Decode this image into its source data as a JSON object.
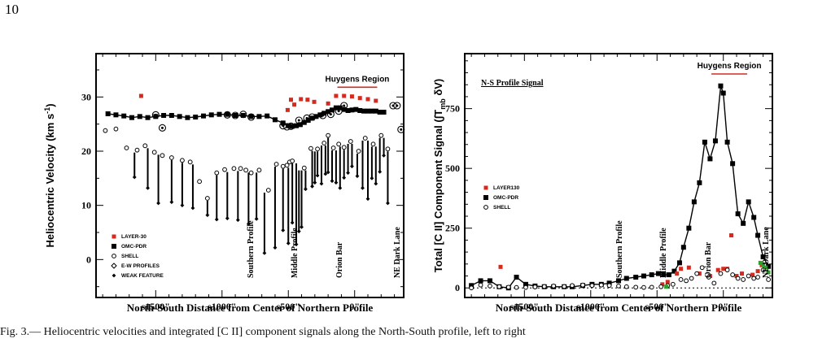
{
  "page_number": "10",
  "caption": "Fig. 3.— Heliocentric velocities and integrated [C II] component signals along the North-South profile, left to right",
  "chart_data": [
    {
      "type": "scatter",
      "title": "",
      "xlabel": "North-South Distance from Center of Northern Profile",
      "ylabel": "Heliocentric Velocity (km s",
      "ylabel_sup": "-1",
      "ylabel_end": ")",
      "xlim": [
        -1950,
        370
      ],
      "ylim": [
        -7,
        38
      ],
      "xticks": [
        {
          "value": -1500,
          "label": "s1500\""
        },
        {
          "value": -1000,
          "label": "s1000\""
        },
        {
          "value": -500,
          "label": "s500\""
        },
        {
          "value": 0,
          "label": "0\""
        }
      ],
      "yticks": [
        0,
        10,
        20,
        30
      ],
      "grid": false,
      "legend_position": "bottom-left",
      "legend": [
        "LAYER-30",
        "OMC-PDR",
        "SHELL",
        "E-W PROFILES",
        "WEAK FEATURE"
      ],
      "annotations": [
        {
          "text": "Southern Profile",
          "x": -790
        },
        {
          "text": "Middle Profile",
          "x": -460
        },
        {
          "text": "Orion Bar",
          "x": -120
        },
        {
          "text": "NE Dark Lane",
          "x": 315
        }
      ],
      "region": {
        "text": "Huygens Region",
        "x_range": [
          -130,
          170
        ],
        "y": 31.8
      },
      "series": [
        {
          "name": "OMC-PDR",
          "marker": "filled-square",
          "line": true,
          "x": [
            -1860,
            -1800,
            -1740,
            -1680,
            -1620,
            -1560,
            -1500,
            -1440,
            -1380,
            -1320,
            -1260,
            -1200,
            -1140,
            -1080,
            -1020,
            -960,
            -900,
            -840,
            -780,
            -720,
            -660,
            -600,
            -540,
            -500,
            -470,
            -440,
            -410,
            -380,
            -350,
            -320,
            -290,
            -260,
            -230,
            -200,
            -170,
            -140,
            -110,
            -80,
            -50,
            -20,
            10,
            40,
            70,
            100,
            130,
            160,
            190,
            220
          ],
          "y": [
            26.9,
            26.7,
            26.5,
            26.2,
            26.4,
            26.2,
            26.4,
            26.6,
            26.6,
            26.4,
            26.2,
            26.3,
            26.5,
            26.7,
            26.8,
            26.8,
            26.6,
            26.6,
            26.4,
            26.4,
            26.5,
            25.8,
            25.2,
            24.7,
            24.6,
            24.7,
            24.9,
            25.3,
            25.7,
            26.1,
            26.4,
            26.7,
            27.0,
            27.3,
            27.6,
            28.0,
            28.0,
            27.7,
            27.5,
            27.6,
            27.7,
            27.5,
            27.4,
            27.4,
            27.4,
            27.4,
            27.2,
            27.2
          ]
        },
        {
          "name": "LAYER-30",
          "marker": "red-square",
          "x": [
            -1610,
            -505,
            -480,
            -455,
            -405,
            -355,
            -305,
            -200,
            -140,
            -80,
            -20,
            40,
            100,
            160
          ],
          "y": [
            30.2,
            27.6,
            29.5,
            28.6,
            29.6,
            29.5,
            29.1,
            28.8,
            30.2,
            30.2,
            30.1,
            29.8,
            29.6,
            29.3
          ]
        },
        {
          "name": "SHELL",
          "marker": "open-circle",
          "x": [
            -1880,
            -1800,
            -1720,
            -1640,
            -1580,
            -1510,
            -1450,
            -1380,
            -1300,
            -1240,
            -1170,
            -1110,
            -1040,
            -980,
            -910,
            -860,
            -820,
            -780,
            -720,
            -650,
            -590,
            -540,
            -510,
            -490,
            -470,
            -380,
            -330,
            -280,
            -230,
            -200,
            -160,
            -120,
            -80,
            -30,
            30,
            80,
            140,
            200,
            250
          ],
          "y": [
            23.8,
            24.1,
            20.6,
            20.2,
            21.0,
            19.8,
            19.2,
            18.8,
            18.3,
            18.0,
            14.4,
            11.3,
            16.0,
            16.6,
            16.8,
            16.8,
            16.5,
            16.0,
            16.5,
            12.8,
            17.6,
            17.2,
            17.4,
            18.0,
            18.2,
            16.9,
            20.5,
            20.4,
            21.5,
            22.9,
            20.6,
            21.3,
            20.7,
            21.8,
            20.0,
            22.4,
            21.3,
            22.9,
            20.4
          ]
        },
        {
          "name": "E-W PROFILES",
          "marker": "circled-point",
          "x": [
            -1500,
            -1450,
            -960,
            -900,
            -840,
            -780,
            -540,
            -510,
            -480,
            -420,
            -360,
            -320,
            -240,
            -180,
            -120,
            -80,
            290,
            320,
            350
          ],
          "y": [
            26.7,
            24.3,
            26.7,
            26.6,
            26.8,
            26.3,
            24.7,
            24.5,
            24.6,
            25.7,
            26.1,
            26.3,
            26.6,
            26.8,
            27.4,
            28.4,
            28.4,
            28.4,
            24.0
          ]
        },
        {
          "name": "WEAK FEATURE",
          "marker": "small-diamond",
          "x": [
            -1660,
            -1560,
            -1480,
            -1380,
            -1300,
            -1220,
            -1110,
            -1040,
            -960,
            -880,
            -800,
            -740,
            -680,
            -600,
            -540,
            -500,
            -470,
            -440,
            -420,
            -400,
            -370,
            -320,
            -300,
            -280,
            -250,
            -220,
            -200,
            -170,
            -140,
            -110,
            -80,
            -50,
            -20,
            20,
            60,
            100,
            130,
            160,
            190,
            220,
            250
          ],
          "y": [
            15.2,
            13.2,
            10.4,
            10.6,
            10.0,
            9.5,
            8.2,
            7.4,
            7.6,
            7.3,
            6.6,
            7.5,
            1.2,
            2.2,
            5.4,
            3.0,
            6.8,
            2.8,
            5.2,
            6.0,
            13.0,
            13.5,
            14.2,
            15.5,
            14.0,
            15.8,
            16.1,
            14.5,
            14.2,
            13.2,
            15.1,
            16.0,
            17.2,
            15.4,
            13.2,
            11.2,
            15.0,
            14.0,
            16.2,
            19.2,
            10.4
          ]
        }
      ]
    },
    {
      "type": "line",
      "title": "N-S Profile Signal",
      "xlabel": "North-South Distance from Center of  Northern Profile",
      "ylabel": "Total [C II] Component Signal (∫T",
      "ylabel_sub": "mb",
      "ylabel_end": " δV)",
      "xlim": [
        -1950,
        370
      ],
      "ylim": [
        -40,
        980
      ],
      "xticks": [
        {
          "value": -1500,
          "label": "s1500\""
        },
        {
          "value": -1000,
          "label": "s1000\""
        },
        {
          "value": -500,
          "label": "s500\""
        },
        {
          "value": 0,
          "label": "0\""
        }
      ],
      "yticks": [
        0,
        250,
        500,
        750
      ],
      "grid": false,
      "legend_position": "middle-left",
      "legend": [
        "LAYER130",
        "OMC-PDR",
        "SHELL"
      ],
      "annotations": [
        {
          "text": "Southern Profile",
          "x": -790
        },
        {
          "text": "Middle Profile",
          "x": -460
        },
        {
          "text": "Orion Bar",
          "x": -120
        },
        {
          "text": "NE Dark Lane",
          "x": 315
        }
      ],
      "region": {
        "text": "Huygens Region",
        "x_range": [
          -90,
          180
        ],
        "y": 895
      },
      "series": [
        {
          "name": "OMC-PDR",
          "marker": "filled-square",
          "line": true,
          "x": [
            -1900,
            -1830,
            -1760,
            -1690,
            -1620,
            -1560,
            -1490,
            -1420,
            -1350,
            -1280,
            -1200,
            -1140,
            -1060,
            -990,
            -920,
            -860,
            -790,
            -730,
            -660,
            -600,
            -540,
            -490,
            -450,
            -410,
            -370,
            -330,
            -300,
            -260,
            -220,
            -180,
            -140,
            -100,
            -60,
            -20,
            0,
            30,
            70,
            110,
            150,
            190,
            230,
            260,
            300,
            340
          ],
          "y": [
            10,
            30,
            30,
            5,
            0,
            45,
            15,
            8,
            5,
            5,
            5,
            5,
            10,
            15,
            15,
            20,
            30,
            40,
            45,
            50,
            55,
            60,
            55,
            55,
            70,
            105,
            170,
            250,
            360,
            440,
            610,
            540,
            615,
            845,
            815,
            610,
            520,
            310,
            270,
            360,
            295,
            220,
            130,
            90
          ]
        },
        {
          "name": "LAYER130",
          "marker": "red-square",
          "x": [
            -1680,
            -460,
            -420,
            -350,
            -320,
            -260,
            -180,
            -100,
            -40,
            0,
            30,
            60,
            100,
            140,
            220,
            260,
            290
          ],
          "y": [
            88,
            15,
            25,
            60,
            80,
            85,
            60,
            50,
            75,
            80,
            80,
            220,
            50,
            60,
            55,
            70,
            95
          ]
        },
        {
          "name": "SHELL",
          "marker": "open-circle",
          "x": [
            -1900,
            -1830,
            -1760,
            -1690,
            -1620,
            -1560,
            -1490,
            -1420,
            -1350,
            -1280,
            -1200,
            -1140,
            -1060,
            -990,
            -920,
            -860,
            -790,
            -730,
            -660,
            -600,
            -540,
            -470,
            -420,
            -380,
            -320,
            -280,
            -240,
            -200,
            -160,
            -110,
            -70,
            -20,
            30,
            70,
            110,
            150,
            190,
            230,
            260,
            300,
            340
          ],
          "y": [
            0,
            12,
            8,
            5,
            3,
            2,
            2,
            4,
            6,
            8,
            6,
            10,
            12,
            10,
            12,
            10,
            8,
            5,
            3,
            2,
            3,
            5,
            10,
            15,
            35,
            30,
            40,
            60,
            85,
            45,
            20,
            60,
            75,
            55,
            40,
            35,
            50,
            40,
            45,
            75,
            35
          ]
        },
        {
          "name": "",
          "marker": "green-square",
          "x": [
            -430,
            280,
            300,
            320,
            340
          ],
          "y": [
            5,
            105,
            95,
            85,
            65
          ]
        }
      ]
    }
  ]
}
